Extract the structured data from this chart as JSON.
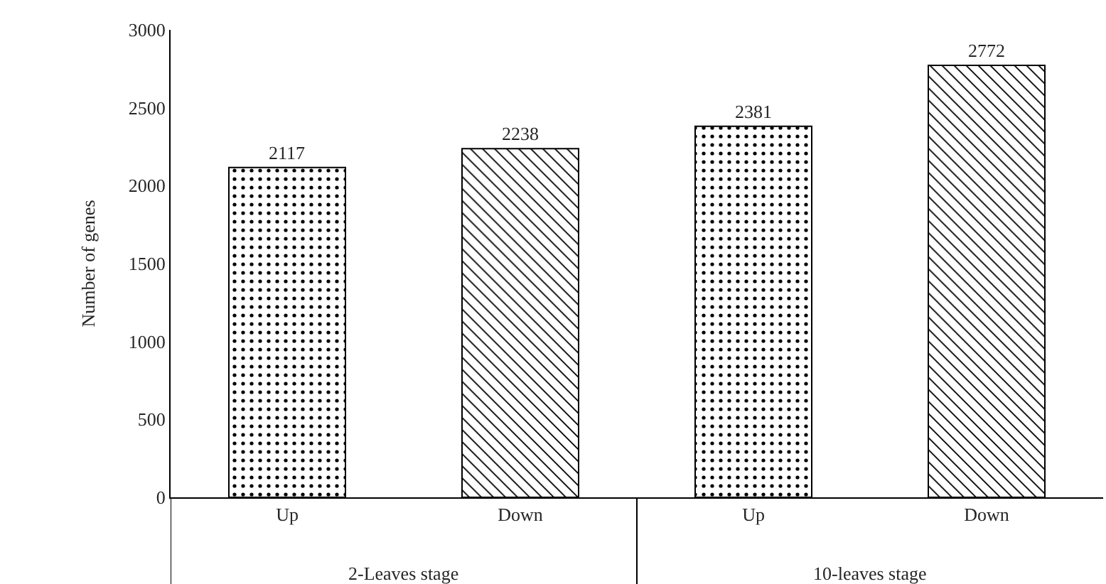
{
  "chart_data": {
    "type": "bar",
    "ylabel": "Number of genes",
    "categories": [
      "Up",
      "Down",
      "Up",
      "Down"
    ],
    "values": [
      2117,
      2238,
      2381,
      2772
    ],
    "colors": [
      "#000000",
      "#000000",
      "#000000",
      "#000000"
    ],
    "ylim": [
      0,
      3000
    ],
    "yticks": [
      0,
      500,
      1000,
      1500,
      2000,
      2500,
      3000
    ],
    "grid": false,
    "data_labels": true,
    "annotations": [
      "2-Leaves stage",
      "10-leaves stage"
    ]
  }
}
